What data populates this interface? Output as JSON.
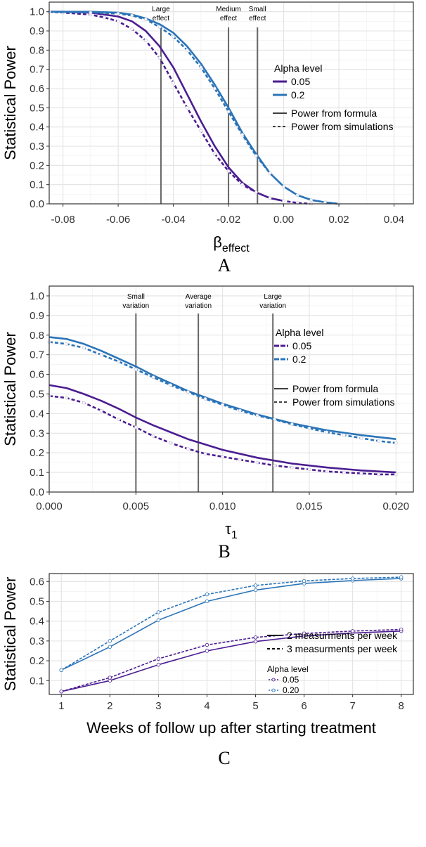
{
  "chart_data": [
    {
      "type": "line",
      "panel_label": "A",
      "ylabel": "Statistical Power",
      "xlabel_main": "β",
      "xlabel_sub": "effect",
      "xlim": [
        -0.085,
        0.047
      ],
      "ylim": [
        0,
        1.05
      ],
      "xticks": [
        -0.08,
        -0.06,
        -0.04,
        -0.02,
        0.0,
        0.02,
        0.04
      ],
      "xtick_labels": [
        "-0.08",
        "-0.06",
        "-0.04",
        "-0.02",
        "0.00",
        "0.02",
        "0.04"
      ],
      "yticks": [
        0.0,
        0.1,
        0.2,
        0.3,
        0.4,
        0.5,
        0.6,
        0.7,
        0.8,
        0.9,
        1.0
      ],
      "ytick_labels": [
        "0.0",
        "0.1",
        "0.2",
        "0.3",
        "0.4",
        "0.5",
        "0.6",
        "0.7",
        "0.8",
        "0.9",
        "1.0"
      ],
      "legend": {
        "title": "Alpha level",
        "alpha_labels": [
          "0.05",
          "0.2"
        ],
        "linetype_labels": [
          "Power from formula",
          "Power from simulations"
        ]
      },
      "vlines": [
        {
          "x": -0.0445,
          "label": [
            "Large",
            "effect"
          ]
        },
        {
          "x": -0.02,
          "label": [
            "Medium",
            "effect"
          ]
        },
        {
          "x": -0.0095,
          "label": [
            "Small",
            "effect"
          ]
        }
      ],
      "series": [
        {
          "name": "0.05 formula",
          "alpha": "0.05",
          "dash": false,
          "color": "#4b1d91",
          "x": [
            -0.085,
            -0.08,
            -0.07,
            -0.06,
            -0.055,
            -0.05,
            -0.045,
            -0.04,
            -0.035,
            -0.03,
            -0.025,
            -0.02,
            -0.015,
            -0.01,
            -0.005,
            0.0
          ],
          "y": [
            1.0,
            1.0,
            0.995,
            0.975,
            0.95,
            0.9,
            0.82,
            0.71,
            0.57,
            0.43,
            0.3,
            0.19,
            0.11,
            0.06,
            0.03,
            0.015
          ]
        },
        {
          "name": "0.05 simulations",
          "alpha": "0.05",
          "dash": true,
          "color": "#4b1d91",
          "x": [
            -0.085,
            -0.08,
            -0.07,
            -0.065,
            -0.06,
            -0.055,
            -0.05,
            -0.045,
            -0.04,
            -0.035,
            -0.03,
            -0.025,
            -0.02,
            -0.015,
            -0.01,
            -0.005,
            0.0,
            0.005,
            0.01
          ],
          "y": [
            1.0,
            0.995,
            0.985,
            0.97,
            0.95,
            0.91,
            0.85,
            0.76,
            0.63,
            0.5,
            0.38,
            0.26,
            0.17,
            0.1,
            0.06,
            0.03,
            0.015,
            0.005,
            0.0
          ],
          "markers": true
        },
        {
          "name": "0.2 formula",
          "alpha": "0.2",
          "dash": false,
          "color": "#2a74b8",
          "x": [
            -0.085,
            -0.07,
            -0.06,
            -0.055,
            -0.05,
            -0.045,
            -0.04,
            -0.035,
            -0.03,
            -0.025,
            -0.02,
            -0.015,
            -0.01,
            -0.005,
            0.0,
            0.005,
            0.01,
            0.015,
            0.02
          ],
          "y": [
            1.0,
            1.0,
            0.995,
            0.985,
            0.965,
            0.935,
            0.89,
            0.82,
            0.73,
            0.62,
            0.5,
            0.37,
            0.26,
            0.16,
            0.09,
            0.045,
            0.02,
            0.008,
            0.0
          ]
        },
        {
          "name": "0.2 simulations",
          "alpha": "0.2",
          "dash": true,
          "color": "#2a74b8",
          "x": [
            -0.085,
            -0.07,
            -0.06,
            -0.055,
            -0.05,
            -0.045,
            -0.04,
            -0.035,
            -0.03,
            -0.025,
            -0.02,
            -0.015,
            -0.01,
            -0.005,
            0.0,
            0.005,
            0.01,
            0.015,
            0.02
          ],
          "y": [
            1.0,
            0.995,
            0.99,
            0.98,
            0.96,
            0.92,
            0.87,
            0.8,
            0.71,
            0.6,
            0.48,
            0.36,
            0.25,
            0.16,
            0.09,
            0.045,
            0.02,
            0.008,
            0.0
          ],
          "markers": true
        }
      ]
    },
    {
      "type": "line",
      "panel_label": "B",
      "ylabel": "Statistical Power",
      "xlabel_main": "τ",
      "xlabel_sub": "1",
      "xlim": [
        0.0,
        0.021
      ],
      "ylim": [
        0,
        1.05
      ],
      "xticks": [
        0.0,
        0.005,
        0.01,
        0.015,
        0.02
      ],
      "xtick_labels": [
        "0.000",
        "0.005",
        "0.010",
        "0.015",
        "0.020"
      ],
      "yticks": [
        0.0,
        0.1,
        0.2,
        0.3,
        0.4,
        0.5,
        0.6,
        0.7,
        0.8,
        0.9,
        1.0
      ],
      "ytick_labels": [
        "0.0",
        "0.1",
        "0.2",
        "0.3",
        "0.4",
        "0.5",
        "0.6",
        "0.7",
        "0.8",
        "0.9",
        "1.0"
      ],
      "legend": {
        "title": "Alpha level",
        "alpha_labels": [
          "0.05",
          "0.2"
        ],
        "linetype_labels": [
          "Power from formula",
          "Power from simulations"
        ]
      },
      "vlines": [
        {
          "x": 0.005,
          "label": [
            "Small",
            "variation"
          ]
        },
        {
          "x": 0.0086,
          "label": [
            "Average",
            "variation"
          ]
        },
        {
          "x": 0.0129,
          "label": [
            "Large",
            "variation"
          ]
        }
      ],
      "series": [
        {
          "name": "0.05 formula",
          "alpha": "0.05",
          "dash": false,
          "color": "#4b1d91",
          "x": [
            0.0,
            0.001,
            0.002,
            0.003,
            0.004,
            0.005,
            0.006,
            0.008,
            0.01,
            0.012,
            0.014,
            0.016,
            0.018,
            0.02
          ],
          "y": [
            0.545,
            0.53,
            0.5,
            0.465,
            0.425,
            0.38,
            0.34,
            0.27,
            0.215,
            0.175,
            0.145,
            0.125,
            0.11,
            0.1
          ]
        },
        {
          "name": "0.05 simulations",
          "alpha": "0.05",
          "dash": true,
          "color": "#4b1d91",
          "x": [
            0.0,
            0.001,
            0.002,
            0.003,
            0.004,
            0.005,
            0.006,
            0.007,
            0.008,
            0.009,
            0.01,
            0.011,
            0.012,
            0.013,
            0.014,
            0.015,
            0.016,
            0.017,
            0.018,
            0.019,
            0.02
          ],
          "y": [
            0.49,
            0.48,
            0.455,
            0.415,
            0.37,
            0.33,
            0.285,
            0.25,
            0.22,
            0.195,
            0.18,
            0.165,
            0.15,
            0.135,
            0.125,
            0.115,
            0.105,
            0.1,
            0.095,
            0.09,
            0.09
          ],
          "markers": true
        },
        {
          "name": "0.2 formula",
          "alpha": "0.2",
          "dash": false,
          "color": "#2a74b8",
          "x": [
            0.0,
            0.001,
            0.002,
            0.003,
            0.004,
            0.005,
            0.006,
            0.008,
            0.01,
            0.012,
            0.014,
            0.016,
            0.018,
            0.02
          ],
          "y": [
            0.79,
            0.78,
            0.755,
            0.72,
            0.68,
            0.64,
            0.595,
            0.515,
            0.45,
            0.395,
            0.35,
            0.315,
            0.29,
            0.27
          ]
        },
        {
          "name": "0.2 simulations",
          "alpha": "0.2",
          "dash": true,
          "color": "#2a74b8",
          "x": [
            0.0,
            0.001,
            0.002,
            0.003,
            0.004,
            0.005,
            0.006,
            0.007,
            0.008,
            0.009,
            0.01,
            0.011,
            0.012,
            0.013,
            0.014,
            0.015,
            0.016,
            0.017,
            0.018,
            0.019,
            0.02
          ],
          "y": [
            0.765,
            0.755,
            0.735,
            0.7,
            0.665,
            0.625,
            0.585,
            0.545,
            0.51,
            0.475,
            0.445,
            0.415,
            0.39,
            0.37,
            0.345,
            0.325,
            0.305,
            0.29,
            0.275,
            0.26,
            0.25
          ],
          "markers": true
        }
      ]
    },
    {
      "type": "line",
      "panel_label": "C",
      "ylabel": "Statistical Power",
      "xlabel": "Weeks of follow up after starting treatment",
      "xlim": [
        0.75,
        8.25
      ],
      "ylim": [
        0.03,
        0.64
      ],
      "xticks": [
        1,
        2,
        3,
        4,
        5,
        6,
        7,
        8
      ],
      "xtick_labels": [
        "1",
        "2",
        "3",
        "4",
        "5",
        "6",
        "7",
        "8"
      ],
      "yticks": [
        0.1,
        0.2,
        0.3,
        0.4,
        0.5,
        0.6
      ],
      "ytick_labels": [
        "0.1",
        "0.2",
        "0.3",
        "0.4",
        "0.5",
        "0.6"
      ],
      "legend": {
        "linetype_labels": [
          "2 measurments per week",
          "3 measurments per week"
        ],
        "title": "Alpha level",
        "alpha_labels": [
          "0.05",
          "0.20"
        ]
      },
      "series": [
        {
          "name": "0.05, 2 per week",
          "alpha": "0.05",
          "dash": false,
          "color": "#4b1d91",
          "markers": true,
          "x": [
            1,
            2,
            3,
            4,
            5,
            6,
            7,
            8
          ],
          "y": [
            0.045,
            0.1,
            0.18,
            0.25,
            0.297,
            0.325,
            0.34,
            0.35
          ]
        },
        {
          "name": "0.05, 3 per week",
          "alpha": "0.05",
          "dash": true,
          "color": "#4b1d91",
          "markers": true,
          "x": [
            1,
            2,
            3,
            4,
            5,
            6,
            7,
            8
          ],
          "y": [
            0.045,
            0.115,
            0.21,
            0.28,
            0.318,
            0.338,
            0.35,
            0.358
          ]
        },
        {
          "name": "0.20, 2 per week",
          "alpha": "0.20",
          "dash": false,
          "color": "#2a74b8",
          "markers": true,
          "x": [
            1,
            2,
            3,
            4,
            5,
            6,
            7,
            8
          ],
          "y": [
            0.153,
            0.27,
            0.405,
            0.5,
            0.557,
            0.59,
            0.605,
            0.615
          ]
        },
        {
          "name": "0.20, 3 per week",
          "alpha": "0.20",
          "dash": true,
          "color": "#2a74b8",
          "markers": true,
          "x": [
            1,
            2,
            3,
            4,
            5,
            6,
            7,
            8
          ],
          "y": [
            0.153,
            0.3,
            0.445,
            0.535,
            0.58,
            0.603,
            0.615,
            0.622
          ]
        }
      ]
    }
  ],
  "colors": {
    "alpha_005": "#4b1d91",
    "alpha_02": "#2a74b8",
    "vline": "#666666"
  }
}
